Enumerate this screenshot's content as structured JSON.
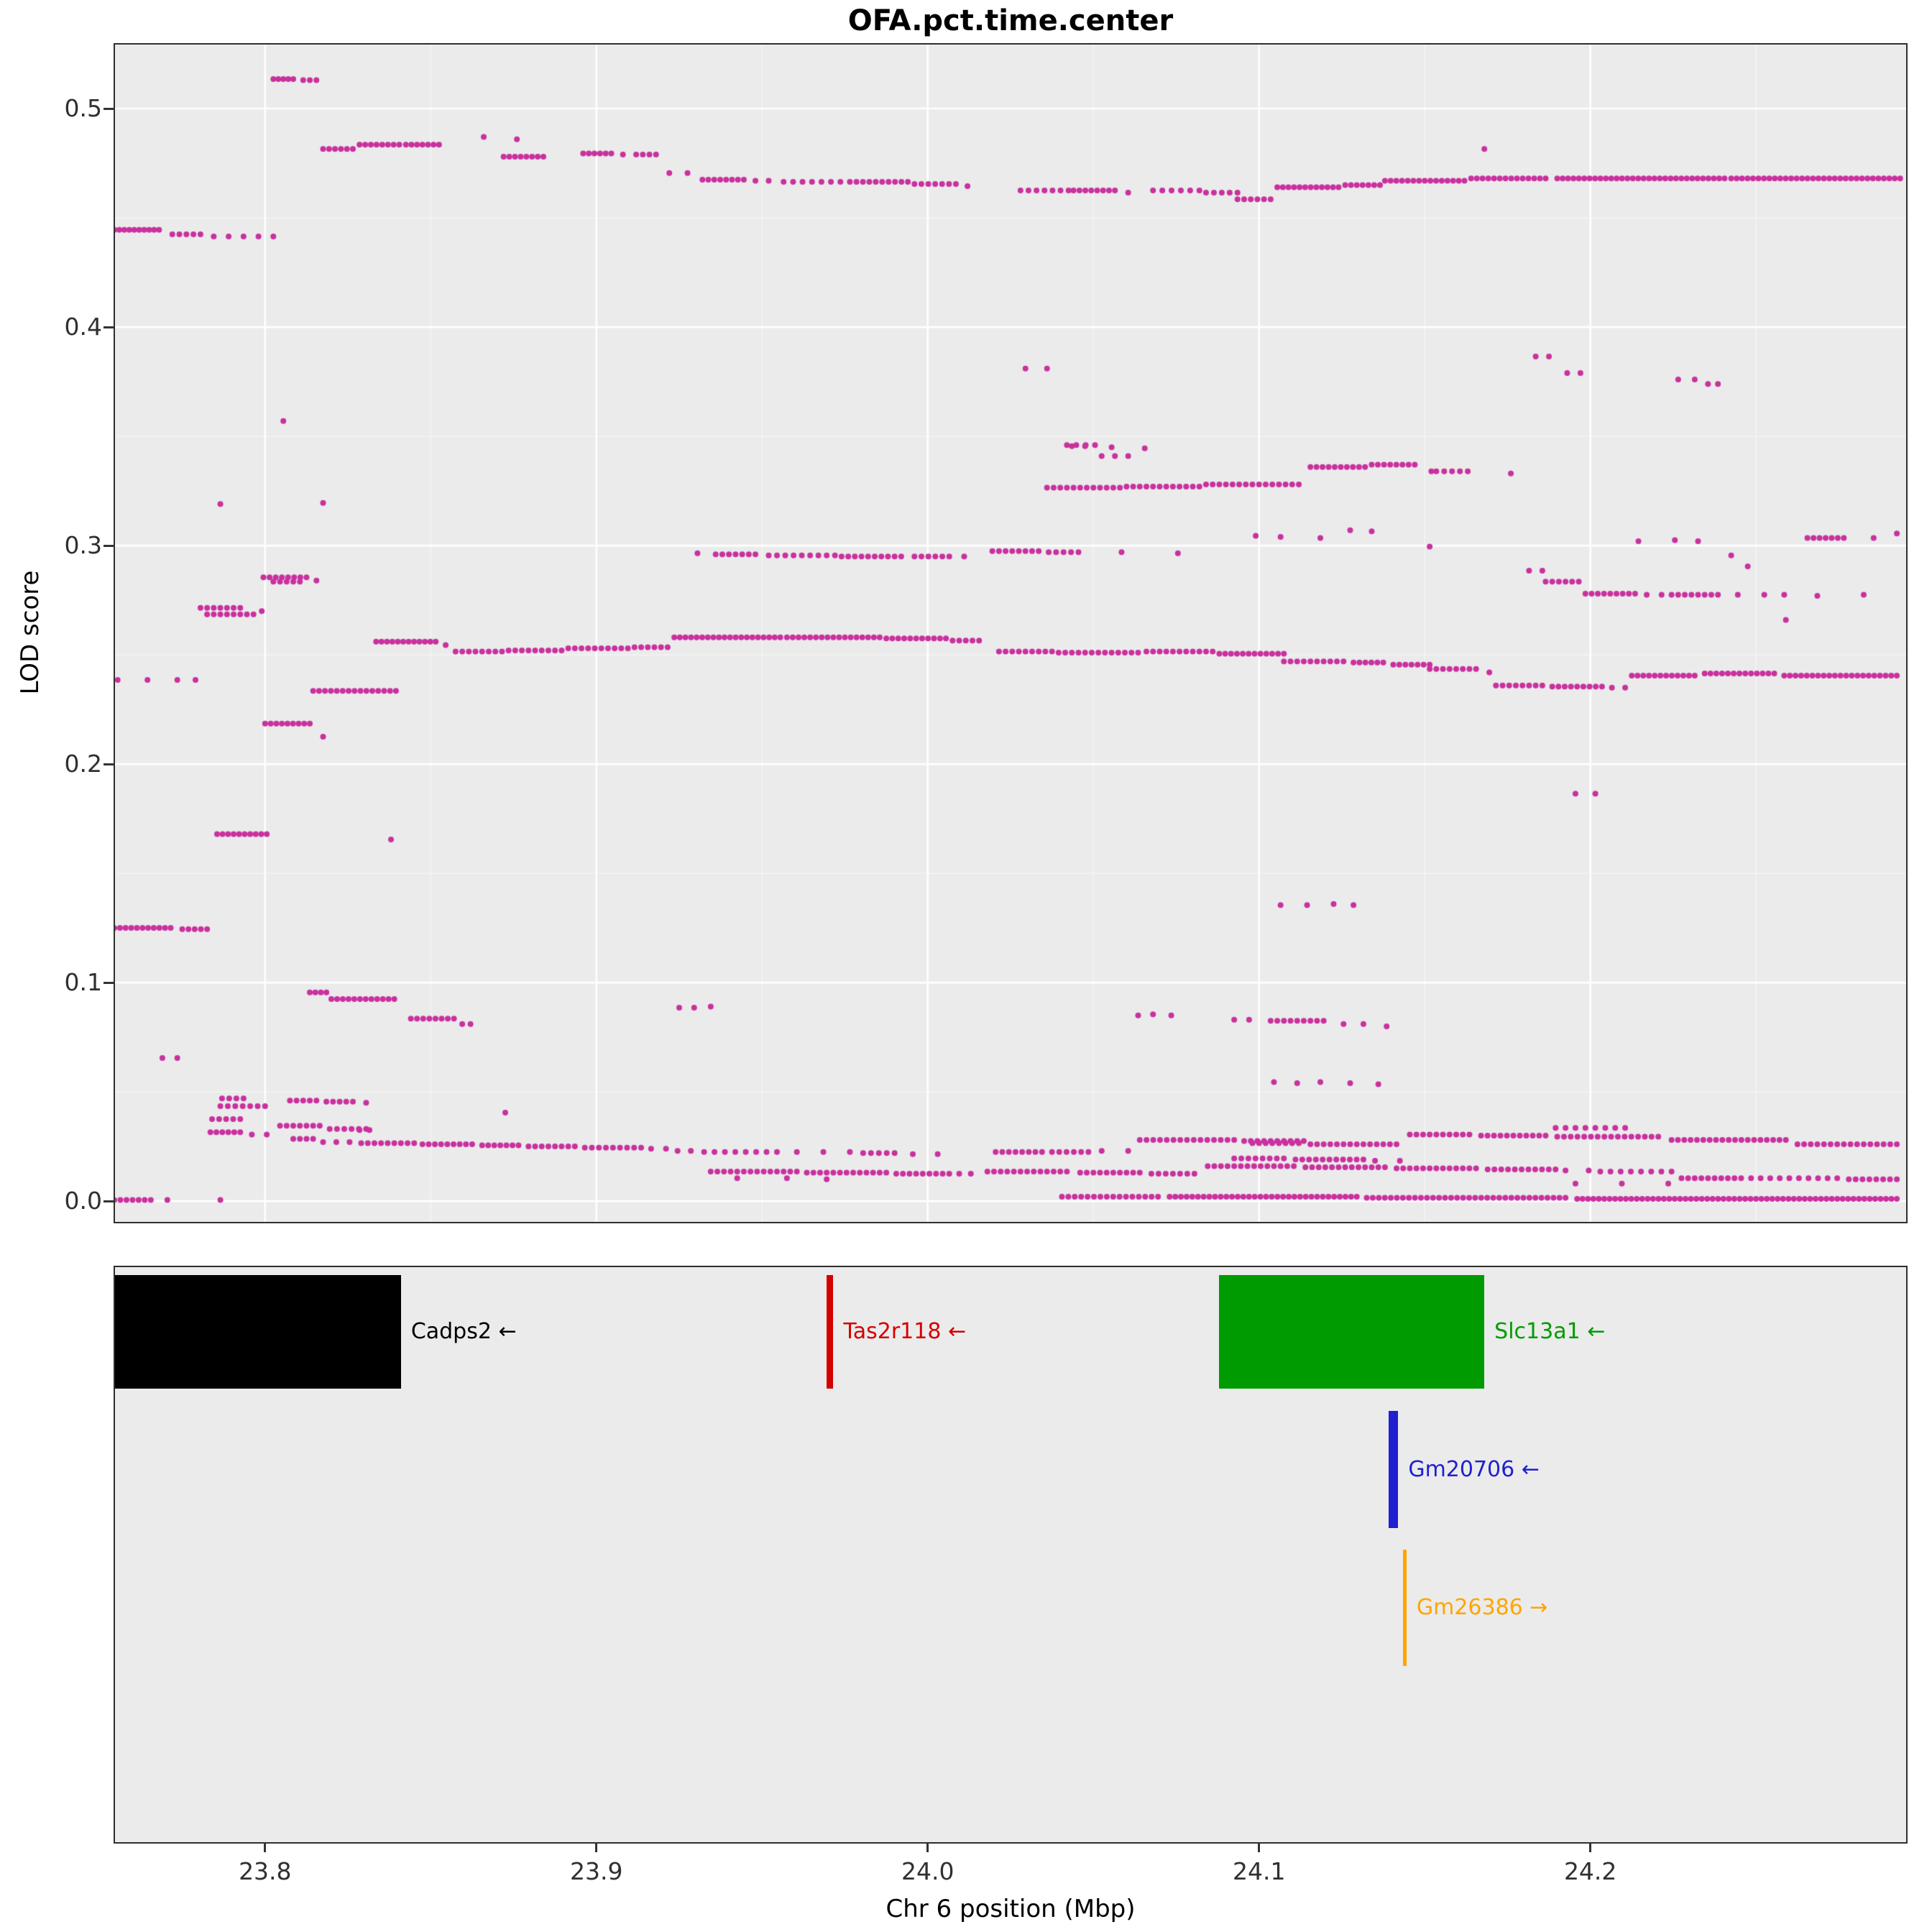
{
  "title": "OFA.pct.time.center",
  "chart_data": {
    "type": "scatter",
    "title": "OFA.pct.time.center",
    "xlabel": "Chr 6 position (Mbp)",
    "ylabel": "LOD score",
    "xlim": [
      23.7547,
      24.2953
    ],
    "ylim": [
      -0.0095,
      0.5293
    ],
    "x_tick_values": [
      23.8,
      23.9,
      24.0,
      24.1,
      24.2
    ],
    "x_tick_labels": [
      "23.8",
      "23.9",
      "24.0",
      "24.1",
      "24.2"
    ],
    "y_tick_values": [
      0.0,
      0.1,
      0.2,
      0.3,
      0.4,
      0.5
    ],
    "y_tick_labels": [
      "0.0",
      "0.1",
      "0.2",
      "0.3",
      "0.4",
      "0.5"
    ],
    "x_minor_ticks": [
      23.85,
      23.95,
      24.05,
      24.15,
      24.25
    ],
    "y_minor_ticks": [
      0.05,
      0.15,
      0.25,
      0.35,
      0.45
    ],
    "point_color": "#C9319E",
    "background": "#EBEBEB",
    "grid_color": "#FFFFFF",
    "legend": "none",
    "grid": "on",
    "segments": [
      [
        23.8025,
        23.8085,
        0.5135,
        5
      ],
      [
        23.8115,
        23.8155,
        0.513,
        3
      ],
      [
        23.8175,
        23.8265,
        0.4815,
        6
      ],
      [
        23.8285,
        23.8405,
        0.4835,
        8
      ],
      [
        23.8425,
        23.8525,
        0.4835,
        7
      ],
      [
        23.872,
        23.884,
        0.478,
        8
      ],
      [
        23.896,
        23.9045,
        0.4795,
        6
      ],
      [
        23.912,
        23.918,
        0.479,
        4
      ],
      [
        23.932,
        23.9445,
        0.4675,
        8
      ],
      [
        23.9565,
        23.9765,
        0.4665,
        8
      ],
      [
        23.9785,
        23.994,
        0.4665,
        9
      ],
      [
        23.996,
        24.0085,
        0.4655,
        7
      ],
      [
        24.028,
        24.0425,
        0.4625,
        7
      ],
      [
        24.044,
        24.0565,
        0.4625,
        8
      ],
      [
        24.068,
        24.082,
        0.4625,
        6
      ],
      [
        24.084,
        24.0935,
        0.4615,
        5
      ],
      [
        24.0935,
        24.1035,
        0.4585,
        6
      ],
      [
        24.1055,
        24.124,
        0.464,
        12
      ],
      [
        24.126,
        24.1365,
        0.465,
        7
      ],
      [
        24.138,
        24.162,
        0.467,
        15
      ],
      [
        24.164,
        24.1865,
        0.468,
        14
      ],
      [
        24.19,
        24.2405,
        0.468,
        32
      ],
      [
        24.2425,
        24.2935,
        0.468,
        32
      ],
      [
        23.7545,
        23.768,
        0.4445,
        10
      ],
      [
        23.772,
        23.7805,
        0.4425,
        5
      ],
      [
        24.042,
        24.0505,
        0.346,
        4
      ],
      [
        24.0525,
        24.0605,
        0.341,
        3
      ],
      [
        24.1155,
        24.132,
        0.336,
        10
      ],
      [
        24.134,
        24.147,
        0.337,
        8
      ],
      [
        24.1535,
        24.163,
        0.334,
        5
      ],
      [
        24.036,
        24.058,
        0.3265,
        12
      ],
      [
        24.06,
        24.082,
        0.327,
        12
      ],
      [
        24.084,
        24.112,
        0.328,
        15
      ],
      [
        23.936,
        23.948,
        0.296,
        7
      ],
      [
        23.952,
        23.972,
        0.2955,
        9
      ],
      [
        23.974,
        23.992,
        0.295,
        10
      ],
      [
        23.996,
        24.0065,
        0.295,
        6
      ],
      [
        24.0195,
        24.0335,
        0.2975,
        8
      ],
      [
        24.0365,
        24.0455,
        0.297,
        5
      ],
      [
        24.2655,
        24.2765,
        0.3035,
        7
      ],
      [
        23.7995,
        23.8125,
        0.2855,
        8
      ],
      [
        23.8025,
        23.8105,
        0.2835,
        5
      ],
      [
        23.7805,
        23.7925,
        0.2715,
        7
      ],
      [
        23.7825,
        23.7965,
        0.2685,
        8
      ],
      [
        24.1865,
        24.1965,
        0.2835,
        6
      ],
      [
        24.1985,
        24.2135,
        0.278,
        9
      ],
      [
        24.2245,
        24.2385,
        0.2775,
        8
      ],
      [
        23.8335,
        23.8515,
        0.256,
        12
      ],
      [
        23.8575,
        23.8715,
        0.2515,
        8
      ],
      [
        23.8735,
        23.8895,
        0.252,
        9
      ],
      [
        23.8915,
        23.9095,
        0.253,
        10
      ],
      [
        23.9115,
        23.9215,
        0.2535,
        6
      ],
      [
        23.9235,
        23.9555,
        0.258,
        20
      ],
      [
        23.9575,
        23.9855,
        0.258,
        17
      ],
      [
        23.9875,
        24.0055,
        0.2575,
        11
      ],
      [
        24.0075,
        24.0155,
        0.2565,
        5
      ],
      [
        24.0215,
        24.0375,
        0.2515,
        9
      ],
      [
        24.0395,
        24.0635,
        0.251,
        13
      ],
      [
        24.066,
        24.086,
        0.2515,
        11
      ],
      [
        24.088,
        24.1075,
        0.2505,
        12
      ],
      [
        24.1075,
        24.1255,
        0.247,
        10
      ],
      [
        24.1285,
        24.1375,
        0.2465,
        6
      ],
      [
        24.1405,
        24.1515,
        0.2455,
        7
      ],
      [
        24.1515,
        24.1655,
        0.2435,
        8
      ],
      [
        24.1715,
        24.1855,
        0.236,
        8
      ],
      [
        24.1885,
        24.2035,
        0.2355,
        9
      ],
      [
        24.2125,
        24.2315,
        0.2405,
        12
      ],
      [
        24.2345,
        24.2555,
        0.2415,
        13
      ],
      [
        24.2585,
        24.2925,
        0.2405,
        21
      ],
      [
        23.8145,
        23.8395,
        0.2335,
        15
      ],
      [
        23.8,
        23.8135,
        0.2185,
        9
      ],
      [
        23.7855,
        23.8005,
        0.168,
        10
      ],
      [
        23.7545,
        23.7715,
        0.125,
        11
      ],
      [
        23.775,
        23.7825,
        0.1245,
        5
      ],
      [
        23.8135,
        23.8185,
        0.0955,
        4
      ],
      [
        23.82,
        23.839,
        0.0925,
        12
      ],
      [
        23.844,
        23.857,
        0.0835,
        8
      ],
      [
        24.1035,
        24.1195,
        0.0825,
        9
      ],
      [
        23.787,
        23.7935,
        0.047,
        4
      ],
      [
        23.7865,
        23.8,
        0.0435,
        7
      ],
      [
        23.784,
        23.7925,
        0.0375,
        5
      ],
      [
        23.7835,
        23.7925,
        0.0315,
        6
      ],
      [
        23.8045,
        23.8165,
        0.0345,
        7
      ],
      [
        23.8195,
        23.8305,
        0.033,
        6
      ],
      [
        23.8075,
        23.8155,
        0.046,
        5
      ],
      [
        23.8185,
        23.8265,
        0.0455,
        5
      ],
      [
        23.8085,
        23.8145,
        0.0285,
        4
      ],
      [
        23.829,
        23.845,
        0.0265,
        9
      ],
      [
        23.8475,
        23.8625,
        0.026,
        9
      ],
      [
        23.8655,
        23.8765,
        0.0255,
        7
      ],
      [
        23.8795,
        23.8935,
        0.025,
        8
      ],
      [
        23.8965,
        23.9135,
        0.0245,
        9
      ],
      [
        23.9325,
        23.9545,
        0.0225,
        8
      ],
      [
        23.9805,
        23.99,
        0.022,
        5
      ],
      [
        23.9345,
        23.9605,
        0.0135,
        14
      ],
      [
        23.9635,
        23.9875,
        0.013,
        13
      ],
      [
        23.9905,
        24.0065,
        0.0125,
        9
      ],
      [
        24.0205,
        24.0345,
        0.0225,
        8
      ],
      [
        24.0375,
        24.0485,
        0.0225,
        6
      ],
      [
        24.064,
        24.0925,
        0.028,
        15
      ],
      [
        24.0955,
        24.1135,
        0.0275,
        10
      ],
      [
        24.098,
        24.112,
        0.0265,
        8
      ],
      [
        24.1155,
        24.1415,
        0.026,
        14
      ],
      [
        24.1455,
        24.1635,
        0.0305,
        10
      ],
      [
        24.167,
        24.1865,
        0.03,
        11
      ],
      [
        24.19,
        24.2205,
        0.0295,
        16
      ],
      [
        24.2245,
        24.259,
        0.028,
        19
      ],
      [
        24.2625,
        24.2925,
        0.026,
        16
      ],
      [
        24.1895,
        24.2105,
        0.0335,
        8
      ],
      [
        24.0925,
        24.1075,
        0.0195,
        8
      ],
      [
        24.111,
        24.1315,
        0.019,
        11
      ],
      [
        24.0845,
        24.1105,
        0.016,
        14
      ],
      [
        24.114,
        24.138,
        0.0155,
        13
      ],
      [
        24.1415,
        24.1655,
        0.015,
        13
      ],
      [
        24.169,
        24.1895,
        0.0145,
        11
      ],
      [
        24.203,
        24.2245,
        0.0135,
        8
      ],
      [
        24.2275,
        24.2455,
        0.0105,
        10
      ],
      [
        24.2485,
        24.2745,
        0.0105,
        10
      ],
      [
        24.278,
        24.2925,
        0.01,
        8
      ],
      [
        24.018,
        24.042,
        0.0135,
        13
      ],
      [
        24.046,
        24.064,
        0.013,
        10
      ],
      [
        24.0675,
        24.0805,
        0.0125,
        7
      ],
      [
        24.0405,
        24.0695,
        0.002,
        16
      ],
      [
        24.073,
        24.1295,
        0.002,
        34
      ],
      [
        24.1325,
        24.1925,
        0.0015,
        34
      ],
      [
        24.196,
        24.2925,
        0.001,
        60
      ],
      [
        23.7545,
        23.7655,
        0.0005,
        7
      ]
    ],
    "singles": [
      [
        23.866,
        0.487
      ],
      [
        23.876,
        0.486
      ],
      [
        23.908,
        0.479
      ],
      [
        23.922,
        0.4705
      ],
      [
        23.9275,
        0.4705
      ],
      [
        23.948,
        0.467
      ],
      [
        23.952,
        0.467
      ],
      [
        24.012,
        0.4645
      ],
      [
        24.0605,
        0.4615
      ],
      [
        24.168,
        0.4815
      ],
      [
        23.7845,
        0.4415
      ],
      [
        23.789,
        0.4415
      ],
      [
        23.7935,
        0.4415
      ],
      [
        23.798,
        0.4415
      ],
      [
        23.8025,
        0.4415
      ],
      [
        24.0295,
        0.381
      ],
      [
        24.036,
        0.381
      ],
      [
        24.1835,
        0.3865
      ],
      [
        24.1875,
        0.3865
      ],
      [
        24.193,
        0.379
      ],
      [
        24.197,
        0.379
      ],
      [
        24.2265,
        0.376
      ],
      [
        24.2315,
        0.376
      ],
      [
        24.2355,
        0.374
      ],
      [
        24.2385,
        0.374
      ],
      [
        23.8055,
        0.357
      ],
      [
        24.0435,
        0.3455
      ],
      [
        24.0475,
        0.3455
      ],
      [
        24.0555,
        0.345
      ],
      [
        24.0655,
        0.3445
      ],
      [
        23.7865,
        0.319
      ],
      [
        23.8175,
        0.3195
      ],
      [
        24.152,
        0.334
      ],
      [
        24.176,
        0.333
      ],
      [
        24.099,
        0.3045
      ],
      [
        24.1065,
        0.304
      ],
      [
        24.1185,
        0.3035
      ],
      [
        24.1275,
        0.307
      ],
      [
        24.134,
        0.3065
      ],
      [
        24.1515,
        0.2995
      ],
      [
        23.9305,
        0.2965
      ],
      [
        24.011,
        0.295
      ],
      [
        24.0585,
        0.297
      ],
      [
        24.0755,
        0.2965
      ],
      [
        24.2145,
        0.302
      ],
      [
        24.2255,
        0.3025
      ],
      [
        24.2325,
        0.302
      ],
      [
        24.2855,
        0.3035
      ],
      [
        24.2925,
        0.3055
      ],
      [
        23.799,
        0.27
      ],
      [
        23.8155,
        0.284
      ],
      [
        24.1815,
        0.2885
      ],
      [
        24.1855,
        0.2885
      ],
      [
        24.217,
        0.2775
      ],
      [
        24.2215,
        0.2775
      ],
      [
        24.2445,
        0.2775
      ],
      [
        24.2525,
        0.2775
      ],
      [
        24.2585,
        0.2775
      ],
      [
        24.2685,
        0.277
      ],
      [
        24.2825,
        0.2775
      ],
      [
        24.2475,
        0.2905
      ],
      [
        24.2425,
        0.2955
      ],
      [
        24.259,
        0.266
      ],
      [
        23.8545,
        0.2545
      ],
      [
        24.1695,
        0.242
      ],
      [
        24.2065,
        0.235
      ],
      [
        24.2105,
        0.235
      ],
      [
        23.7555,
        0.2385
      ],
      [
        23.7645,
        0.2385
      ],
      [
        23.7735,
        0.2385
      ],
      [
        23.779,
        0.2385
      ],
      [
        23.8175,
        0.2125
      ],
      [
        23.838,
        0.1655
      ],
      [
        24.1955,
        0.1865
      ],
      [
        24.2015,
        0.1865
      ],
      [
        24.1065,
        0.1355
      ],
      [
        24.1145,
        0.1355
      ],
      [
        24.1225,
        0.136
      ],
      [
        24.1285,
        0.1355
      ],
      [
        23.925,
        0.0885
      ],
      [
        23.9295,
        0.0885
      ],
      [
        23.9345,
        0.089
      ],
      [
        24.0635,
        0.085
      ],
      [
        24.068,
        0.0855
      ],
      [
        24.0735,
        0.085
      ],
      [
        24.0925,
        0.083
      ],
      [
        24.097,
        0.083
      ],
      [
        24.1255,
        0.081
      ],
      [
        24.1315,
        0.081
      ],
      [
        24.1385,
        0.08
      ],
      [
        23.8595,
        0.081
      ],
      [
        23.862,
        0.081
      ],
      [
        23.769,
        0.0655
      ],
      [
        23.7735,
        0.0655
      ],
      [
        24.1045,
        0.0545
      ],
      [
        24.1115,
        0.054
      ],
      [
        24.1185,
        0.0545
      ],
      [
        24.1275,
        0.054
      ],
      [
        24.136,
        0.0535
      ],
      [
        23.796,
        0.0305
      ],
      [
        23.8005,
        0.0305
      ],
      [
        23.8305,
        0.045
      ],
      [
        23.8175,
        0.027
      ],
      [
        23.8215,
        0.027
      ],
      [
        23.8255,
        0.027
      ],
      [
        23.8285,
        0.0325
      ],
      [
        23.8315,
        0.0325
      ],
      [
        23.9165,
        0.024
      ],
      [
        23.921,
        0.024
      ],
      [
        23.9245,
        0.023
      ],
      [
        23.9285,
        0.023
      ],
      [
        23.9605,
        0.0225
      ],
      [
        23.9685,
        0.0225
      ],
      [
        23.9765,
        0.0225
      ],
      [
        23.9955,
        0.0215
      ],
      [
        24.003,
        0.0215
      ],
      [
        24.0095,
        0.0125
      ],
      [
        24.013,
        0.0125
      ],
      [
        23.9425,
        0.0105
      ],
      [
        23.9575,
        0.0105
      ],
      [
        23.9695,
        0.01
      ],
      [
        24.0525,
        0.023
      ],
      [
        24.0605,
        0.023
      ],
      [
        24.135,
        0.0185
      ],
      [
        24.1425,
        0.0185
      ],
      [
        24.1925,
        0.014
      ],
      [
        24.1995,
        0.014
      ],
      [
        24.1955,
        0.008
      ],
      [
        24.2095,
        0.008
      ],
      [
        24.2235,
        0.008
      ],
      [
        23.7705,
        0.0005
      ],
      [
        23.7865,
        0.0005
      ],
      [
        23.8725,
        0.0405
      ]
    ]
  },
  "genes": {
    "items": [
      {
        "name": "Cadps2",
        "label": "Cadps2 ←",
        "color": "#000000",
        "start": 23.7547,
        "end": 23.841,
        "row": 0
      },
      {
        "name": "Tas2r118",
        "label": "Tas2r118 ←",
        "color": "#D40000",
        "start": 23.9695,
        "end": 23.9715,
        "row": 0
      },
      {
        "name": "Slc13a1",
        "label": "Slc13a1 ←",
        "color": "#009B00",
        "start": 24.088,
        "end": 24.168,
        "row": 0
      },
      {
        "name": "Gm20706",
        "label": "Gm20706 ←",
        "color": "#2020D0",
        "start": 24.139,
        "end": 24.142,
        "row": 1
      },
      {
        "name": "Gm26386",
        "label": "Gm26386 →",
        "color": "#FFA500",
        "start": 24.1435,
        "end": 24.1445,
        "row": 2
      }
    ]
  }
}
